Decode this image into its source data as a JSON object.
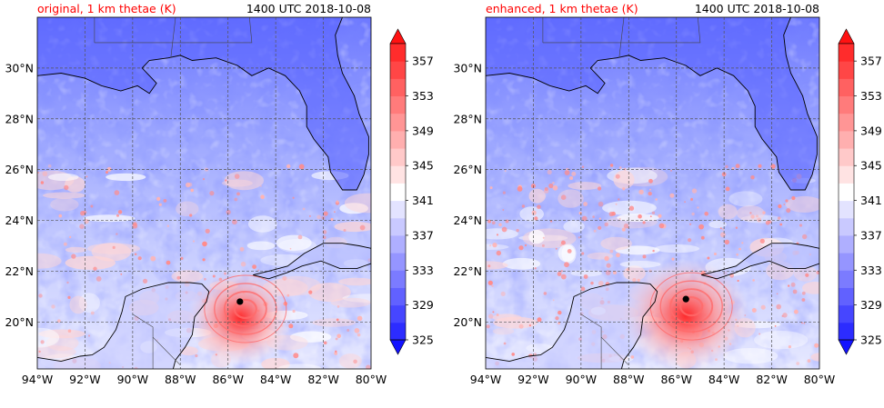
{
  "panels": [
    {
      "id": "original",
      "title_left": "original, 1 km thetae (K)",
      "title_right": "1400 UTC 2018-10-08",
      "storm_center": {
        "lon": -85.5,
        "lat": 20.8
      }
    },
    {
      "id": "enhanced",
      "title_left": "enhanced, 1 km thetae (K)",
      "title_right": "1400 UTC 2018-10-08",
      "storm_center": {
        "lon": -85.6,
        "lat": 20.9
      }
    }
  ],
  "x_ticks": [
    "94°W",
    "92°W",
    "90°W",
    "88°W",
    "86°W",
    "84°W",
    "82°W",
    "80°W"
  ],
  "y_ticks": [
    "30°N",
    "28°N",
    "26°N",
    "24°N",
    "22°N",
    "20°N"
  ],
  "colorbar": {
    "ticks": [
      "357",
      "353",
      "349",
      "345",
      "341",
      "337",
      "333",
      "329",
      "325"
    ],
    "range": [
      325,
      359
    ],
    "colors": [
      "#1212ff",
      "#2c2cff",
      "#4646ff",
      "#6161ff",
      "#7b7bff",
      "#9595ff",
      "#afafff",
      "#c9c9ff",
      "#e3e3ff",
      "#ffffff",
      "#ffe3e3",
      "#ffc9c9",
      "#ffafaf",
      "#ff9595",
      "#ff7b7b",
      "#ff6161",
      "#ff4646",
      "#ff2c2c",
      "#ff1212"
    ]
  },
  "colors": {
    "title_left": "#ff0000",
    "ocean_mid": "#9aa4ff",
    "land_dark": "#2424ff",
    "warm": "#ff8a8a"
  }
}
